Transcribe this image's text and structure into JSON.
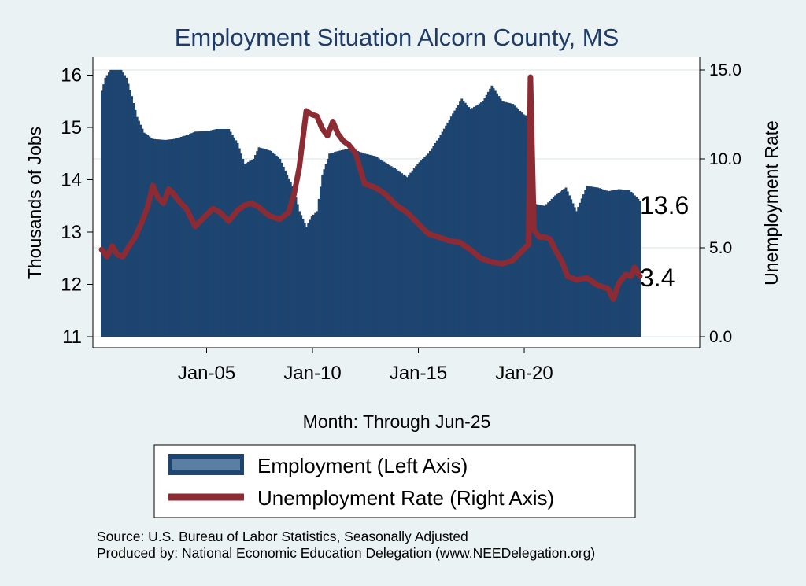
{
  "chart_data": {
    "type": "bar+line",
    "title": "Employment Situation Alcorn  County, MS",
    "xlabel": "Month: Through Jun-25",
    "ylabel_left": "Thousands of Jobs",
    "ylabel_right": "Unemployment Rate",
    "y_left_lim": [
      11,
      16.5
    ],
    "y_right_lim": [
      0,
      15.0
    ],
    "y_left_ticks": [
      "11",
      "12",
      "13",
      "14",
      "15",
      "16"
    ],
    "y_right_ticks": [
      "0.0",
      "5.0",
      "10.0",
      "15.0"
    ],
    "x_ticks": [
      "Jan-05",
      "Jan-10",
      "Jan-15",
      "Jan-20"
    ],
    "colors": {
      "employment": "#1d4570",
      "unemployment": "#8c2b33",
      "background": "#eaf2f3",
      "plot_background": "#ffffff",
      "title": "#1f3b6a"
    },
    "series": [
      {
        "name": "Employment (Left Axis)",
        "axis": "left",
        "points": [
          [
            "2000-01",
            15.7
          ],
          [
            "2000-03",
            15.95
          ],
          [
            "2000-06",
            16.1
          ],
          [
            "2000-12",
            16.1
          ],
          [
            "2001-03",
            15.95
          ],
          [
            "2001-06",
            15.6
          ],
          [
            "2001-09",
            15.2
          ],
          [
            "2002-01",
            14.9
          ],
          [
            "2002-06",
            14.78
          ],
          [
            "2003-01",
            14.76
          ],
          [
            "2003-06",
            14.78
          ],
          [
            "2004-01",
            14.85
          ],
          [
            "2004-06",
            14.92
          ],
          [
            "2005-01",
            14.93
          ],
          [
            "2005-06",
            14.97
          ],
          [
            "2006-01",
            14.97
          ],
          [
            "2006-06",
            14.7
          ],
          [
            "2006-10",
            14.3
          ],
          [
            "2007-03",
            14.4
          ],
          [
            "2007-06",
            14.62
          ],
          [
            "2008-01",
            14.55
          ],
          [
            "2008-06",
            14.4
          ],
          [
            "2008-10",
            14.1
          ],
          [
            "2009-02",
            13.8
          ],
          [
            "2009-05",
            13.4
          ],
          [
            "2009-09",
            13.1
          ],
          [
            "2009-12",
            13.3
          ],
          [
            "2010-03",
            13.4
          ],
          [
            "2010-06",
            14.1
          ],
          [
            "2010-10",
            14.5
          ],
          [
            "2011-03",
            14.55
          ],
          [
            "2011-10",
            14.6
          ],
          [
            "2012-06",
            14.5
          ],
          [
            "2012-12",
            14.45
          ],
          [
            "2013-06",
            14.32
          ],
          [
            "2013-12",
            14.2
          ],
          [
            "2014-06",
            14.05
          ],
          [
            "2014-12",
            14.3
          ],
          [
            "2015-06",
            14.5
          ],
          [
            "2015-12",
            14.8
          ],
          [
            "2016-06",
            15.15
          ],
          [
            "2017-01",
            15.55
          ],
          [
            "2017-06",
            15.35
          ],
          [
            "2018-01",
            15.5
          ],
          [
            "2018-06",
            15.8
          ],
          [
            "2018-12",
            15.5
          ],
          [
            "2019-06",
            15.45
          ],
          [
            "2019-12",
            15.25
          ],
          [
            "2020-03",
            15.2
          ],
          [
            "2020-05",
            13.55
          ],
          [
            "2020-12",
            13.5
          ],
          [
            "2021-06",
            13.7
          ],
          [
            "2021-12",
            13.85
          ],
          [
            "2022-06",
            13.4
          ],
          [
            "2022-12",
            13.88
          ],
          [
            "2023-06",
            13.85
          ],
          [
            "2023-12",
            13.78
          ],
          [
            "2024-06",
            13.82
          ],
          [
            "2024-12",
            13.8
          ],
          [
            "2025-06",
            13.6
          ]
        ]
      },
      {
        "name": "Unemployment Rate (Right Axis)",
        "axis": "right",
        "points": [
          [
            "2000-01",
            4.9
          ],
          [
            "2000-04",
            4.5
          ],
          [
            "2000-07",
            5.1
          ],
          [
            "2000-10",
            4.6
          ],
          [
            "2001-01",
            4.5
          ],
          [
            "2001-04",
            5.0
          ],
          [
            "2001-08",
            5.6
          ],
          [
            "2001-12",
            6.5
          ],
          [
            "2002-03",
            7.3
          ],
          [
            "2002-06",
            8.5
          ],
          [
            "2002-09",
            7.8
          ],
          [
            "2002-12",
            7.5
          ],
          [
            "2003-03",
            8.3
          ],
          [
            "2003-06",
            8.0
          ],
          [
            "2003-09",
            7.6
          ],
          [
            "2004-01",
            7.2
          ],
          [
            "2004-06",
            6.2
          ],
          [
            "2004-12",
            6.8
          ],
          [
            "2005-04",
            7.2
          ],
          [
            "2005-08",
            7.0
          ],
          [
            "2006-01",
            6.5
          ],
          [
            "2006-06",
            7.1
          ],
          [
            "2006-10",
            7.4
          ],
          [
            "2007-02",
            7.5
          ],
          [
            "2007-06",
            7.3
          ],
          [
            "2007-12",
            6.8
          ],
          [
            "2008-06",
            6.6
          ],
          [
            "2008-11",
            7.0
          ],
          [
            "2009-02",
            8.0
          ],
          [
            "2009-05",
            9.5
          ],
          [
            "2009-09",
            12.7
          ],
          [
            "2009-12",
            12.5
          ],
          [
            "2010-03",
            12.4
          ],
          [
            "2010-06",
            11.7
          ],
          [
            "2010-09",
            11.3
          ],
          [
            "2010-12",
            12.1
          ],
          [
            "2011-03",
            11.4
          ],
          [
            "2011-06",
            11.0
          ],
          [
            "2011-09",
            10.8
          ],
          [
            "2012-01",
            10.3
          ],
          [
            "2012-06",
            8.6
          ],
          [
            "2012-12",
            8.4
          ],
          [
            "2013-06",
            8.0
          ],
          [
            "2013-12",
            7.4
          ],
          [
            "2014-06",
            7.0
          ],
          [
            "2014-12",
            6.4
          ],
          [
            "2015-06",
            5.8
          ],
          [
            "2015-12",
            5.6
          ],
          [
            "2016-06",
            5.4
          ],
          [
            "2016-12",
            5.3
          ],
          [
            "2017-06",
            4.9
          ],
          [
            "2017-12",
            4.4
          ],
          [
            "2018-06",
            4.2
          ],
          [
            "2018-12",
            4.1
          ],
          [
            "2019-06",
            4.3
          ],
          [
            "2019-10",
            4.7
          ],
          [
            "2020-01",
            5.0
          ],
          [
            "2020-03",
            5.2
          ],
          [
            "2020-04",
            14.6
          ],
          [
            "2020-06",
            6.0
          ],
          [
            "2020-09",
            5.6
          ],
          [
            "2020-12",
            5.6
          ],
          [
            "2021-03",
            5.5
          ],
          [
            "2021-06",
            4.9
          ],
          [
            "2021-10",
            4.2
          ],
          [
            "2022-01",
            3.4
          ],
          [
            "2022-06",
            3.2
          ],
          [
            "2022-12",
            3.3
          ],
          [
            "2023-06",
            2.9
          ],
          [
            "2023-12",
            2.7
          ],
          [
            "2024-03",
            2.1
          ],
          [
            "2024-06",
            3.0
          ],
          [
            "2024-10",
            3.5
          ],
          [
            "2025-01",
            3.4
          ],
          [
            "2025-03",
            3.9
          ],
          [
            "2025-06",
            3.4
          ]
        ]
      }
    ],
    "end_labels": {
      "employment": "13.6",
      "unemployment": "3.4"
    },
    "legend": {
      "placement": "bottom",
      "entries": [
        "Employment (Left Axis)",
        "Unemployment Rate (Right Axis)"
      ]
    }
  },
  "footer": {
    "source": "Source: U.S. Bureau of Labor Statistics, Seasonally Adjusted",
    "producer": "Produced by: National Economic Education Delegation (www.NEEDelegation.org)"
  }
}
